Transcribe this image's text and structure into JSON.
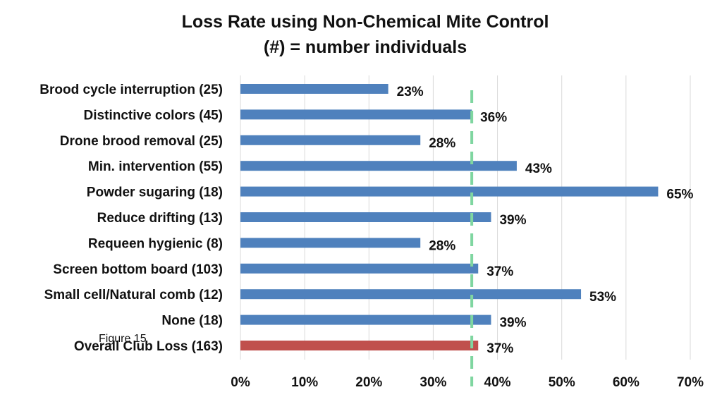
{
  "chart_data": {
    "type": "bar",
    "orientation": "horizontal",
    "title": "Loss Rate using Non-Chemical Mite Control",
    "subtitle": "(#) = number individuals",
    "categories": [
      "Brood cycle interruption (25)",
      "Distinctive colors (45)",
      "Drone brood removal (25)",
      "Min. intervention (55)",
      "Powder sugaring (18)",
      "Reduce drifting (13)",
      "Requeen hygienic (8)",
      "Screen bottom board (103)",
      "Small cell/Natural comb (12)",
      "None (18)",
      "Overall Club Loss (163)"
    ],
    "values": [
      23,
      36,
      28,
      43,
      65,
      39,
      28,
      37,
      53,
      39,
      37
    ],
    "value_labels": [
      "23%",
      "36%",
      "28%",
      "43%",
      "65%",
      "39%",
      "28%",
      "37%",
      "53%",
      "39%",
      "37%"
    ],
    "bar_colors": [
      "#4F81BD",
      "#4F81BD",
      "#4F81BD",
      "#4F81BD",
      "#4F81BD",
      "#4F81BD",
      "#4F81BD",
      "#4F81BD",
      "#4F81BD",
      "#4F81BD",
      "#C0504D"
    ],
    "xlim": [
      0,
      70
    ],
    "xticks": [
      0,
      10,
      20,
      30,
      40,
      50,
      60,
      70
    ],
    "xtick_labels": [
      "0%",
      "10%",
      "20%",
      "30%",
      "40%",
      "50%",
      "60%",
      "70%"
    ],
    "reference_line": {
      "value": 36,
      "color": "#7FD6A0",
      "style": "dashed"
    },
    "grid": "vertical",
    "annotation": "Figure 15"
  }
}
